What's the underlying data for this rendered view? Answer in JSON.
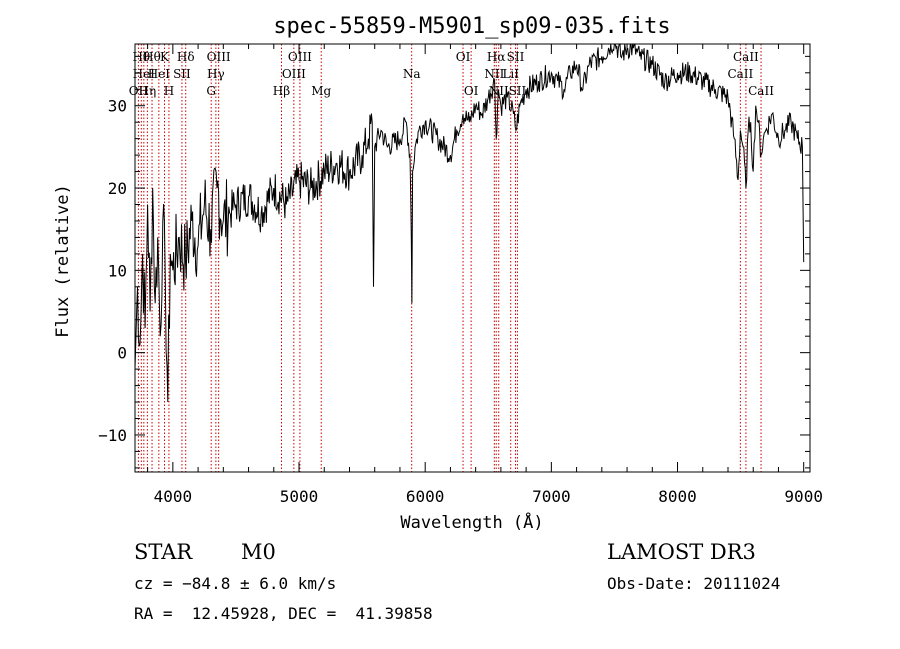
{
  "chart_data": {
    "type": "line",
    "title": "spec-55859-M5901_sp09-035.fits",
    "xlabel": "Wavelength (Å)",
    "ylabel": "Flux (relative)",
    "xlim": [
      3700,
      9050
    ],
    "ylim": [
      -14.5,
      37.5
    ],
    "xticks": [
      4000,
      5000,
      6000,
      7000,
      8000,
      9000
    ],
    "yticks": [
      -10,
      0,
      10,
      20,
      30
    ],
    "xtick_labels": [
      "4000",
      "5000",
      "6000",
      "7000",
      "8000",
      "9000"
    ],
    "ytick_labels": [
      "−10",
      "0",
      "10",
      "20",
      "30"
    ],
    "grid": false,
    "line_color": "#000000",
    "marker_color": "#cc0000",
    "series": [
      {
        "name": "flux",
        "x": [
          3700,
          3720,
          3740,
          3760,
          3780,
          3800,
          3820,
          3840,
          3860,
          3880,
          3900,
          3920,
          3940,
          3960,
          3980,
          4000,
          4050,
          4100,
          4150,
          4200,
          4250,
          4300,
          4350,
          4400,
          4450,
          4500,
          4600,
          4700,
          4800,
          4900,
          5000,
          5100,
          5200,
          5300,
          5400,
          5500,
          5550,
          5580,
          5590,
          5600,
          5650,
          5700,
          5800,
          5850,
          5880,
          5890,
          5895,
          5900,
          5920,
          5950,
          6000,
          6100,
          6200,
          6250,
          6300,
          6350,
          6400,
          6450,
          6500,
          6550,
          6563,
          6580,
          6600,
          6650,
          6700,
          6720,
          6750,
          6800,
          6900,
          7000,
          7050,
          7100,
          7150,
          7200,
          7250,
          7300,
          7400,
          7500,
          7550,
          7600,
          7650,
          7700,
          7800,
          7900,
          8000,
          8100,
          8200,
          8300,
          8400,
          8450,
          8480,
          8498,
          8520,
          8542,
          8560,
          8580,
          8600,
          8620,
          8640,
          8662,
          8680,
          8700,
          8750,
          8800,
          8850,
          8900,
          8950,
          8990,
          9000
        ],
        "y": [
          -2,
          8,
          1,
          12,
          3,
          18,
          5,
          20,
          6,
          14,
          2,
          16,
          9,
          -6,
          12,
          10,
          14,
          11,
          16,
          13,
          18,
          15,
          20,
          16,
          17,
          18,
          19,
          17,
          20,
          18,
          21,
          20,
          22,
          23,
          22,
          24,
          26,
          28,
          8,
          25,
          27,
          25,
          26,
          28,
          24,
          14,
          6,
          22,
          25,
          27,
          28,
          26,
          24,
          27,
          29,
          28,
          30,
          29,
          31,
          33,
          26,
          32,
          30,
          31,
          29,
          27,
          30,
          32,
          33,
          34,
          33,
          32,
          34,
          35,
          32,
          35,
          36,
          38,
          36,
          37,
          37,
          36,
          35,
          33,
          34,
          34,
          33,
          32,
          31,
          26,
          21,
          27,
          25,
          20,
          27,
          28,
          22,
          30,
          28,
          24,
          26,
          27,
          29,
          26,
          27,
          28,
          26,
          25,
          11
        ]
      }
    ],
    "line_markers": [
      {
        "wave": 3727,
        "label": "OII",
        "row": 3
      },
      {
        "wave": 3750,
        "label": "Hθ",
        "row": 1
      },
      {
        "wave": 3770,
        "label": "HeI",
        "row": 2
      },
      {
        "wave": 3798,
        "label": "Hη",
        "row": 3
      },
      {
        "wave": 3835,
        "label": "Hθ",
        "row": 1
      },
      {
        "wave": 3889,
        "label": "HeI",
        "row": 2
      },
      {
        "wave": 3934,
        "label": "K",
        "row": 1
      },
      {
        "wave": 3969,
        "label": "H",
        "row": 3
      },
      {
        "wave": 4072,
        "label": "SII",
        "row": 2
      },
      {
        "wave": 4102,
        "label": "Hδ",
        "row": 1
      },
      {
        "wave": 4304,
        "label": "G",
        "row": 3
      },
      {
        "wave": 4341,
        "label": "Hγ",
        "row": 2
      },
      {
        "wave": 4363,
        "label": "OIII",
        "row": 1
      },
      {
        "wave": 4861,
        "label": "Hβ",
        "row": 3
      },
      {
        "wave": 4959,
        "label": "OIII",
        "row": 2
      },
      {
        "wave": 5007,
        "label": "OIII",
        "row": 1
      },
      {
        "wave": 5176,
        "label": "Mg",
        "row": 3
      },
      {
        "wave": 5893,
        "label": "Na",
        "row": 2
      },
      {
        "wave": 6300,
        "label": "OI",
        "row": 1
      },
      {
        "wave": 6364,
        "label": "OI",
        "row": 3
      },
      {
        "wave": 6548,
        "label": "NII",
        "row": 2
      },
      {
        "wave": 6563,
        "label": "Hα",
        "row": 1
      },
      {
        "wave": 6583,
        "label": "NII",
        "row": 3
      },
      {
        "wave": 6716,
        "label": "SII",
        "row": 1
      },
      {
        "wave": 6678,
        "label": "LiI",
        "row": 2
      },
      {
        "wave": 6731,
        "label": "SII",
        "row": 3
      },
      {
        "wave": 8498,
        "label": "CaII",
        "row": 2
      },
      {
        "wave": 8542,
        "label": "CaII",
        "row": 1
      },
      {
        "wave": 8662,
        "label": "CaII",
        "row": 3
      }
    ]
  },
  "info": {
    "object_class": "STAR",
    "subclass": "M0",
    "survey": "LAMOST DR3",
    "redshift": "cz = −84.8 ± 6.0 km/s",
    "obs_date": "Obs-Date: 20111024",
    "coords": "RA =  12.45928, DEC =  41.39858"
  }
}
